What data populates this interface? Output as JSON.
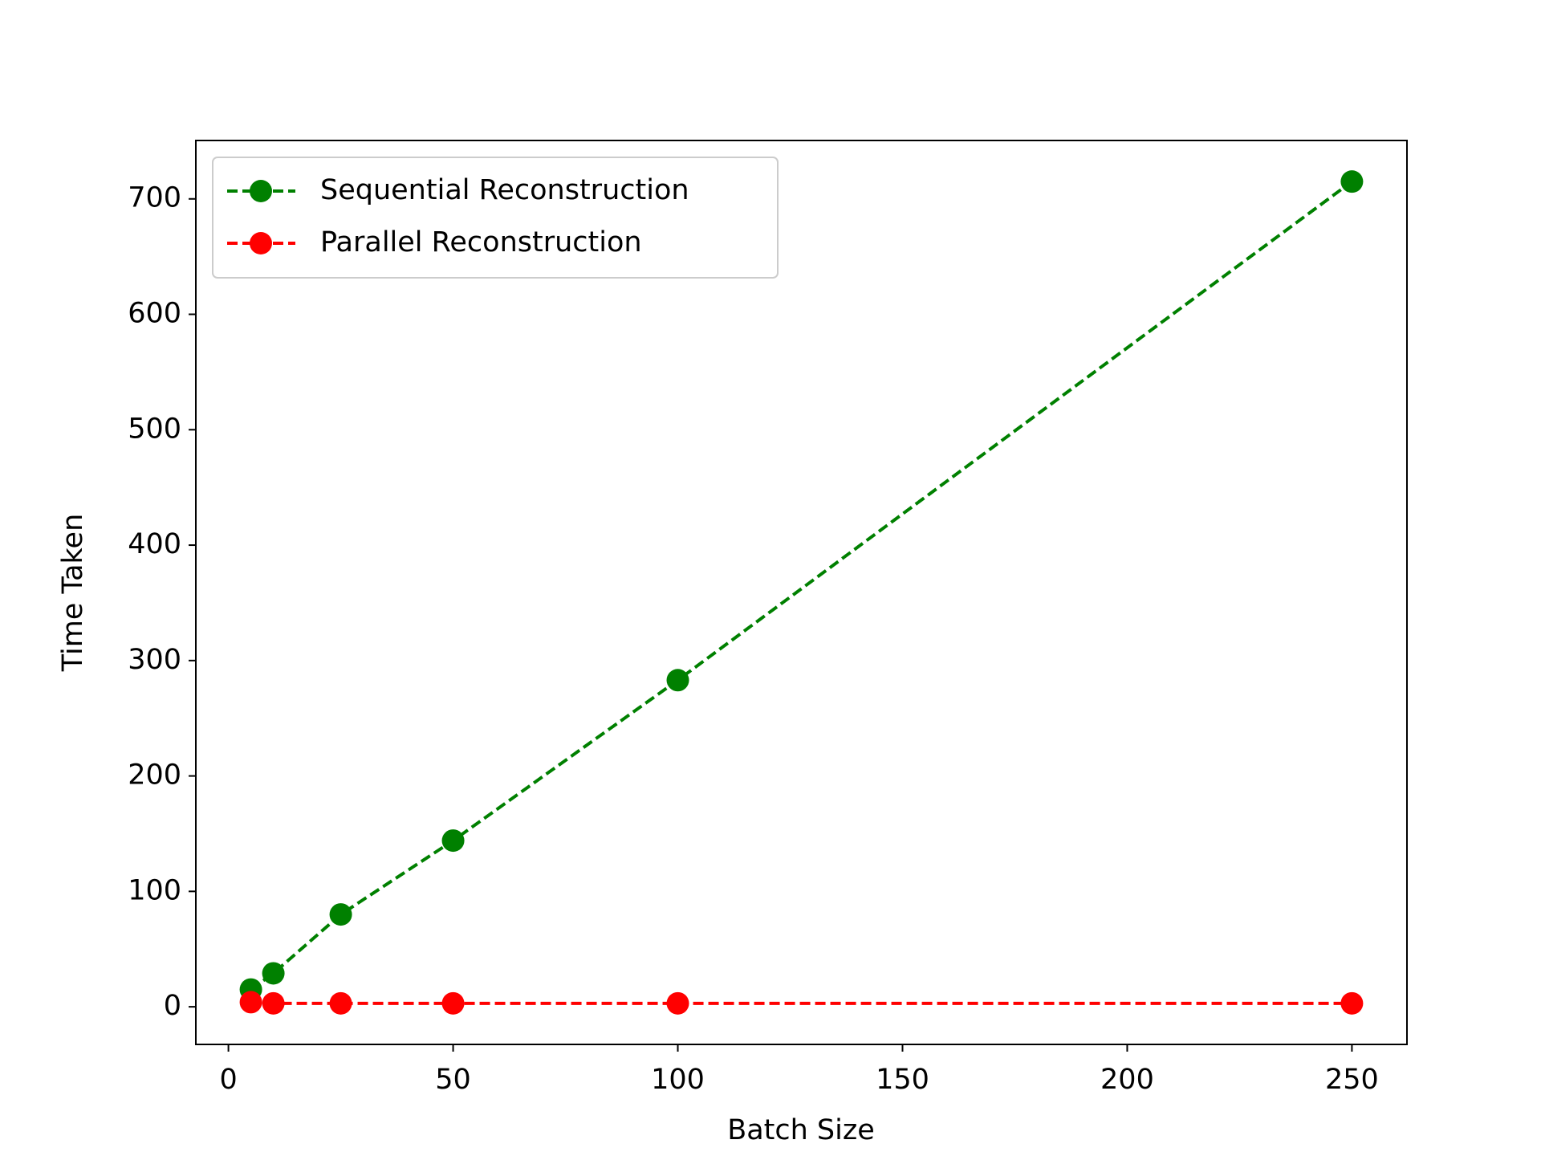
{
  "chart_data": {
    "type": "line",
    "xlabel": "Batch Size",
    "ylabel": "Time Taken",
    "x": [
      5,
      10,
      25,
      50,
      100,
      250
    ],
    "series": [
      {
        "name": "Sequential Reconstruction",
        "color": "#008000",
        "values": [
          15,
          29,
          80,
          144,
          283,
          715
        ]
      },
      {
        "name": "Parallel Reconstruction",
        "color": "#ff0000",
        "values": [
          4,
          3,
          3,
          3,
          3,
          3
        ]
      }
    ],
    "xlim": [
      -7.25,
      262.25
    ],
    "xticks": [
      0,
      50,
      100,
      150,
      200,
      250
    ],
    "ylim": [
      -32.6,
      750.6
    ],
    "yticks": [
      0,
      100,
      200,
      300,
      400,
      500,
      600,
      700
    ],
    "legend": "upper left",
    "linestyle": "dashed",
    "marker": "circle",
    "grid": false
  }
}
